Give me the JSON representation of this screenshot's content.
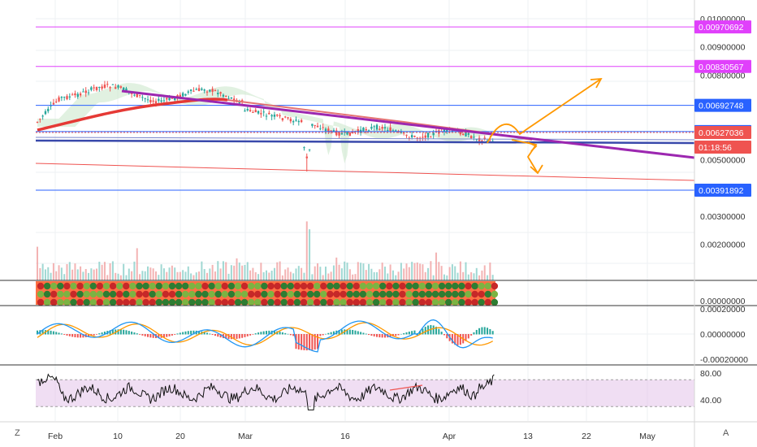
{
  "chart_data": [
    {
      "type": "candlestick",
      "panel": "price",
      "x_labels": [
        "Feb",
        "10",
        "20",
        "Mar",
        "16",
        "Apr",
        "13",
        "22",
        "May"
      ],
      "y_ticks": [
        "0.01000000",
        "0.00900000",
        "0.00800000",
        "0.00500000",
        "0.00300000",
        "0.00200000",
        "0.00000000"
      ],
      "y_values": [
        0.01,
        0.009,
        0.008,
        0.005,
        0.003,
        0.002,
        0.0
      ],
      "horizontal_levels": [
        {
          "label": "0.00970692",
          "value": 0.00970692,
          "color": "#e040fb"
        },
        {
          "label": "0.00830567",
          "value": 0.00830567,
          "color": "#e040fb"
        },
        {
          "label": "0.00692748",
          "value": 0.00692748,
          "color": "#2962ff"
        },
        {
          "label": "0.00599921",
          "value": 0.00599921,
          "color": "#2962ff"
        },
        {
          "label": "0.00391892",
          "value": 0.00391892,
          "color": "#2962ff"
        }
      ],
      "current_price": {
        "label": "0.00627036",
        "countdown": "01:18:56",
        "color": "#ef5350"
      },
      "colors": {
        "up": "#26a69a",
        "down": "#ef5350",
        "moving_average": "#e53935",
        "trendline": "#9c27b0",
        "projection": "#ff9800",
        "volume_up": "#80cbc4",
        "volume_down": "#ef9a9a"
      }
    },
    {
      "type": "line",
      "panel": "macd",
      "y_ticks": [
        "0.00020000",
        "0.00000000",
        "-0.00020000"
      ],
      "colors": {
        "macd": "#2196f3",
        "signal": "#ff9800",
        "hist_up": "#26a69a",
        "hist_down": "#ef5350"
      }
    },
    {
      "type": "line",
      "panel": "rsi",
      "y_ticks": [
        "80.00",
        "40.00"
      ],
      "band": [
        30,
        70
      ],
      "colors": {
        "line": "#111111",
        "band": "#e1bee7"
      }
    }
  ],
  "footer": {
    "left": "Z",
    "right": "A"
  }
}
